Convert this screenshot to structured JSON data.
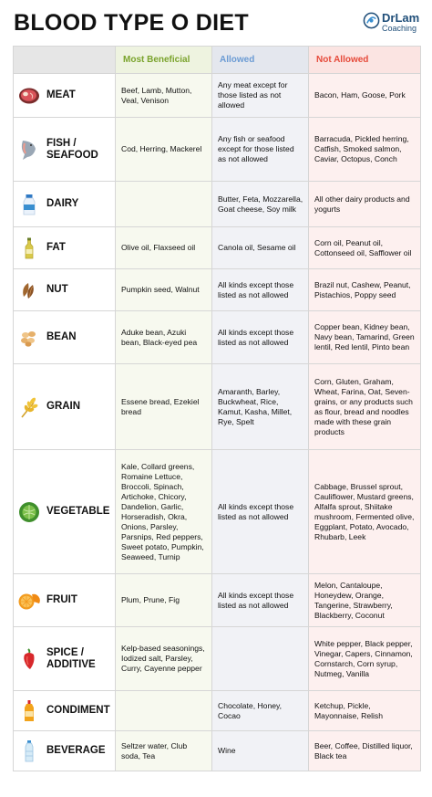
{
  "title": "BLOOD TYPE O DIET",
  "logo": {
    "name": "DrLam",
    "sub": "Coaching"
  },
  "columns": {
    "beneficial": "Most Beneficial",
    "allowed": "Allowed",
    "not_allowed": "Not Allowed"
  },
  "colors": {
    "beneficial": "#7aa32c",
    "allowed": "#6b9bd4",
    "not_allowed": "#e64a3a"
  },
  "rows": [
    {
      "icon": "meat-icon",
      "category": "MEAT",
      "beneficial": "Beef, Lamb, Mutton, Veal, Venison",
      "allowed": "Any meat except for those listed as not allowed",
      "not_allowed": "Bacon, Ham, Goose, Pork"
    },
    {
      "icon": "fish-icon",
      "category": "FISH / SEAFOOD",
      "beneficial": "Cod, Herring, Mackerel",
      "allowed": "Any fish or seafood except for those listed as not allowed",
      "not_allowed": "Barracuda, Pickled herring, Catfish, Smoked salmon, Caviar, Octopus, Conch"
    },
    {
      "icon": "milk-bottle-icon",
      "category": "DAIRY",
      "beneficial": "",
      "allowed": "Butter, Feta, Mozzarella, Goat cheese, Soy milk",
      "not_allowed": "All other dairy products and yogurts"
    },
    {
      "icon": "oil-bottle-icon",
      "category": "FAT",
      "beneficial": "Olive oil, Flaxseed oil",
      "allowed": "Canola oil, Sesame oil",
      "not_allowed": "Corn oil, Peanut oil, Cottonseed oil, Safflower oil"
    },
    {
      "icon": "almond-icon",
      "category": "NUT",
      "beneficial": "Pumpkin seed, Walnut",
      "allowed": "All kinds except those listed as not allowed",
      "not_allowed": "Brazil nut, Cashew, Peanut, Pistachios, Poppy seed"
    },
    {
      "icon": "beans-icon",
      "category": "BEAN",
      "beneficial": "Aduke bean, Azuki bean, Black-eyed pea",
      "allowed": "All kinds except those listed as not allowed",
      "not_allowed": "Copper bean, Kidney bean, Navy bean, Tamarind, Green lentil, Red lentil, Pinto bean"
    },
    {
      "icon": "wheat-icon",
      "category": "GRAIN",
      "beneficial": "Essene bread, Ezekiel bread",
      "allowed": "Amaranth, Barley, Buckwheat, Rice, Kamut, Kasha, Millet, Rye, Spelt",
      "not_allowed": "Corn, Gluten, Graham, Wheat, Farina, Oat, Seven-grains, or any products such as flour, bread and noodles made with these grain products"
    },
    {
      "icon": "cabbage-icon",
      "category": "VEGETABLE",
      "beneficial": "Kale, Collard greens, Romaine Lettuce, Broccoli, Spinach, Artichoke, Chicory, Dandelion, Garlic, Horseradish, Okra, Onions, Parsley, Parsnips, Red peppers, Sweet potato, Pumpkin, Seaweed, Turnip",
      "allowed": "All kinds except those listed as not allowed",
      "not_allowed": "Cabbage, Brussel sprout, Cauliflower, Mustard greens, Alfalfa sprout, Shiitake mushroom, Fermented olive, Eggplant, Potato, Avocado, Rhubarb, Leek"
    },
    {
      "icon": "orange-icon",
      "category": "FRUIT",
      "beneficial": "Plum, Prune, Fig",
      "allowed": "All kinds except those listed as not allowed",
      "not_allowed": "Melon, Cantaloupe, Honeydew, Orange, Tangerine, Strawberry, Blackberry, Coconut"
    },
    {
      "icon": "chili-pepper-icon",
      "category": "SPICE / ADDITIVE",
      "beneficial": "Kelp-based seasonings, Iodized salt, Parsley, Curry, Cayenne pepper",
      "allowed": "",
      "not_allowed": "White pepper, Black pepper, Vinegar, Capers, Cinnamon, Cornstarch, Corn syrup, Nutmeg, Vanilla"
    },
    {
      "icon": "condiment-bottle-icon",
      "category": "CONDIMENT",
      "beneficial": "",
      "allowed": "Chocolate, Honey, Cocao",
      "not_allowed": "Ketchup, Pickle, Mayonnaise, Relish"
    },
    {
      "icon": "water-bottle-icon",
      "category": "BEVERAGE",
      "beneficial": "Seltzer water, Club soda, Tea",
      "allowed": "Wine",
      "not_allowed": "Beer, Coffee, Distilled liquor, Black tea"
    }
  ]
}
